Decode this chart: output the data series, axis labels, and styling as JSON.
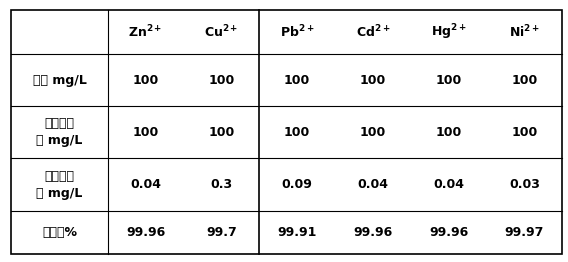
{
  "col_headers": [
    "Zn^{2+}",
    "Cu^{2+}",
    "Pb^{2+}",
    "Cd^{2+}",
    "Hg^{2+}",
    "Ni^{2+}"
  ],
  "col_header_bases": [
    "Zn",
    "Cu",
    "Pb",
    "Cd",
    "Hg",
    "Ni"
  ],
  "row_headers": [
    "用量 mg/L",
    "处理前浓\n度 mg/L",
    "处理后浓\n度 mg/L",
    "去除率%"
  ],
  "data": [
    [
      "100",
      "100",
      "100",
      "100",
      "100",
      "100"
    ],
    [
      "100",
      "100",
      "100",
      "100",
      "100",
      "100"
    ],
    [
      "0.04",
      "0.3",
      "0.09",
      "0.04",
      "0.04",
      "0.03"
    ],
    [
      "99.96",
      "99.7",
      "99.91",
      "99.96",
      "99.96",
      "99.97"
    ]
  ],
  "background_color": "#ffffff",
  "border_color": "#000000",
  "text_color": "#000000",
  "font_size": 9,
  "header_font_size": 9
}
